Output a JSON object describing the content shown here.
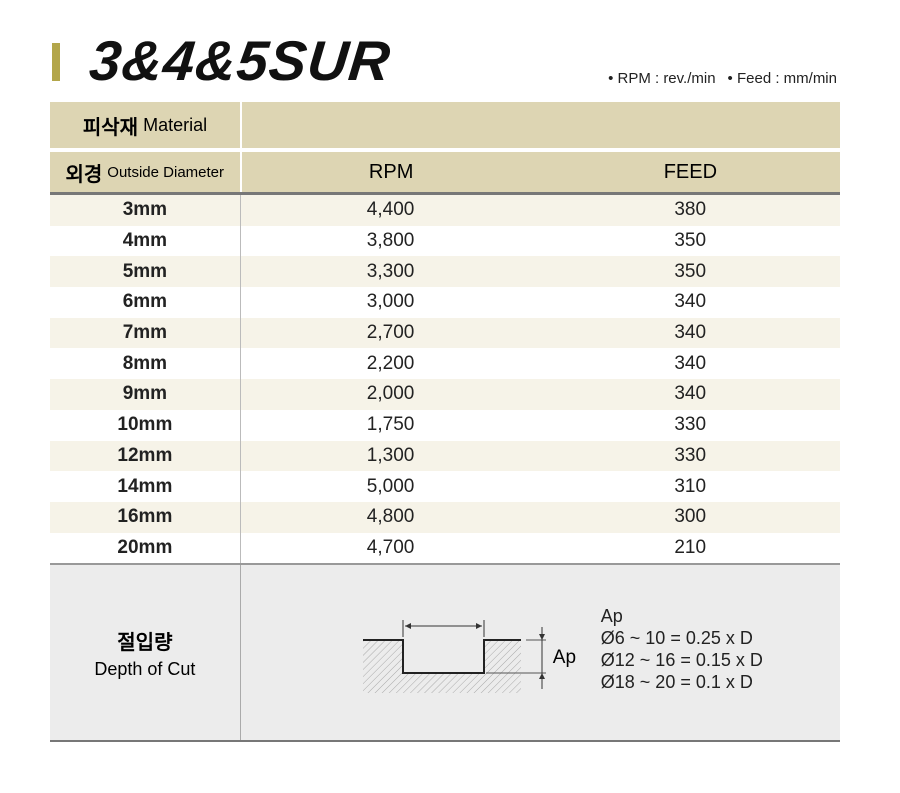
{
  "title": "3&4&5SUR",
  "units": {
    "rpm": "• RPM : rev./min",
    "feed": "• Feed : mm/min"
  },
  "header": {
    "material_ko": "피삭재",
    "material_en": "Material",
    "diameter_ko": "외경",
    "diameter_en": "Outside Diameter",
    "rpm": "RPM",
    "feed": "FEED"
  },
  "rows": [
    {
      "d": "3mm",
      "rpm": "4,400",
      "feed": "380"
    },
    {
      "d": "4mm",
      "rpm": "3,800",
      "feed": "350"
    },
    {
      "d": "5mm",
      "rpm": "3,300",
      "feed": "350"
    },
    {
      "d": "6mm",
      "rpm": "3,000",
      "feed": "340"
    },
    {
      "d": "7mm",
      "rpm": "2,700",
      "feed": "340"
    },
    {
      "d": "8mm",
      "rpm": "2,200",
      "feed": "340"
    },
    {
      "d": "9mm",
      "rpm": "2,000",
      "feed": "340"
    },
    {
      "d": "10mm",
      "rpm": "1,750",
      "feed": "330"
    },
    {
      "d": "12mm",
      "rpm": "1,300",
      "feed": "330"
    },
    {
      "d": "14mm",
      "rpm": "5,000",
      "feed": "310"
    },
    {
      "d": "16mm",
      "rpm": "4,800",
      "feed": "300"
    },
    {
      "d": "20mm",
      "rpm": "4,700",
      "feed": "210"
    }
  ],
  "depth": {
    "ko": "절입량",
    "en": "Depth of Cut",
    "ap_label": "Ap",
    "formula_title": "Ap",
    "formulas": [
      "Ø6 ~ 10 = 0.25 x D",
      "Ø12 ~ 16 = 0.15 x D",
      "Ø18 ~ 20 = 0.1 x D"
    ]
  }
}
